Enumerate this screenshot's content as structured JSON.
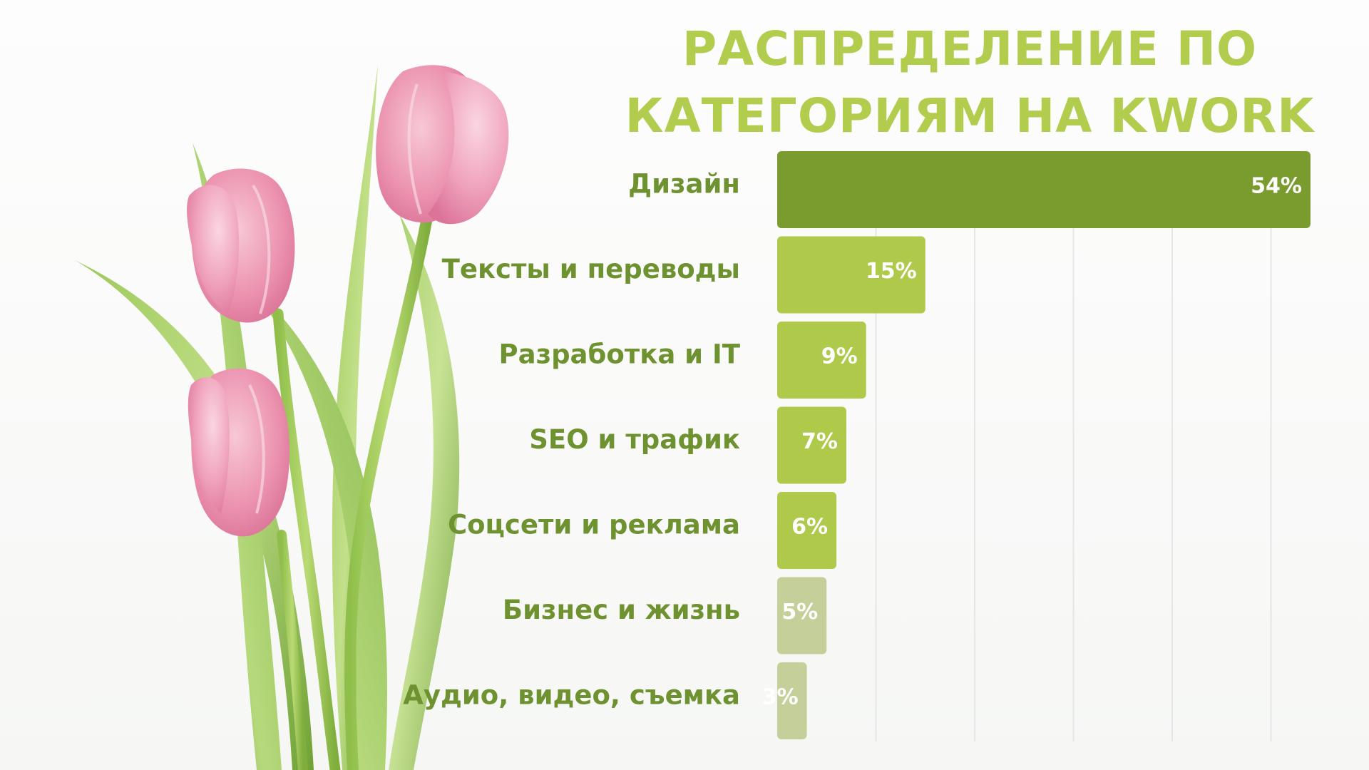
{
  "chart_data": {
    "type": "bar",
    "orientation": "horizontal",
    "title": "РАСПРЕДЕЛЕНИЕ ПО КАТЕГОРИЯМ НА KWORK",
    "title_lines": [
      "РАСПРЕДЕЛЕНИЕ ПО",
      "КАТЕГОРИЯМ НА KWORK"
    ],
    "categories": [
      "Дизайн",
      "Тексты и переводы",
      "Разработка и IT",
      "SEO и трафик",
      "Соцсети и реклама",
      "Бизнес и жизнь",
      "Аудио, видео, съемка"
    ],
    "values": [
      54,
      15,
      9,
      7,
      6,
      5,
      3
    ],
    "value_labels": [
      "54%",
      "15%",
      "9%",
      "7%",
      "6%",
      "5%",
      "3%"
    ],
    "bar_colors": [
      "#7a9c2f",
      "#afc94a",
      "#afc94a",
      "#afc94a",
      "#afc94a",
      "#c5cf9a",
      "#c5cf9a"
    ],
    "xlim": [
      0,
      60
    ],
    "grid_step": 10,
    "grid": true,
    "legend": "none",
    "xlabel": "",
    "ylabel": ""
  },
  "colors": {
    "title": "#b2cc4e",
    "category_text": "#6f9231",
    "value_text": "#ffffff",
    "gridline": "#e6e6e6"
  },
  "decor": {
    "image": "pink-tulips-bouquet"
  }
}
